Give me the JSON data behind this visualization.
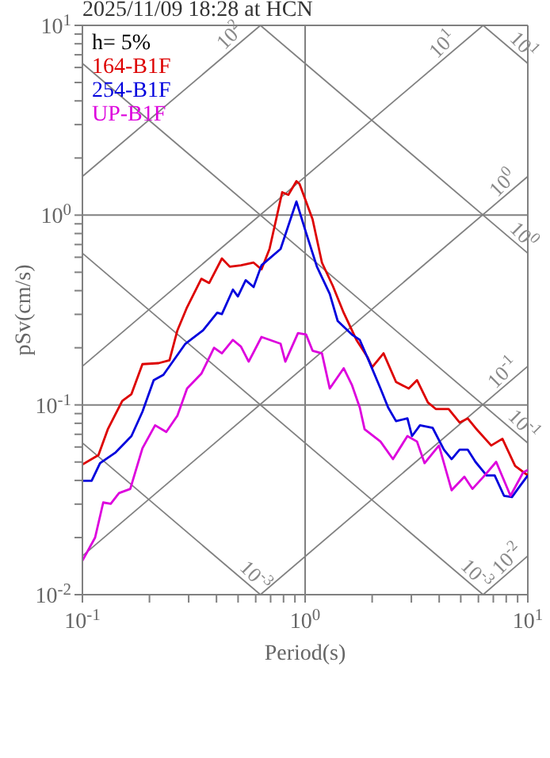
{
  "chart_data": {
    "type": "line",
    "title": "2025/11/09 18:28 at HCN",
    "xlabel": "Period(s)",
    "ylabel": "pSv(cm/s)",
    "legend_title": "h= 5%",
    "legend": "top left",
    "log": "xy",
    "grid": true,
    "xlim": [
      0.1,
      10
    ],
    "ylim": [
      0.01,
      10
    ],
    "xticks": [
      {
        "value": 0.1,
        "label": "10$^{-1}$"
      },
      {
        "value": 0.2,
        "label": null
      },
      {
        "value": 0.3,
        "label": null
      },
      {
        "value": 0.4,
        "label": null
      },
      {
        "value": 0.5,
        "label": null
      },
      {
        "value": 0.6,
        "label": null
      },
      {
        "value": 0.7,
        "label": null
      },
      {
        "value": 0.8,
        "label": null
      },
      {
        "value": 0.9,
        "label": null
      },
      {
        "value": 1,
        "label": "10$^{0}$"
      },
      {
        "value": 2,
        "label": null
      },
      {
        "value": 3,
        "label": null
      },
      {
        "value": 4,
        "label": null
      },
      {
        "value": 5,
        "label": null
      },
      {
        "value": 6,
        "label": null
      },
      {
        "value": 7,
        "label": null
      },
      {
        "value": 8,
        "label": null
      },
      {
        "value": 9,
        "label": null
      },
      {
        "value": 10,
        "label": "10$^{1}$"
      }
    ],
    "yticks": [
      {
        "value": 0.01,
        "label": "10$^{-2}$"
      },
      {
        "value": 0.02,
        "label": null
      },
      {
        "value": 0.03,
        "label": null
      },
      {
        "value": 0.04,
        "label": null
      },
      {
        "value": 0.05,
        "label": null
      },
      {
        "value": 0.06,
        "label": null
      },
      {
        "value": 0.07,
        "label": null
      },
      {
        "value": 0.08,
        "label": null
      },
      {
        "value": 0.09,
        "label": null
      },
      {
        "value": 0.1,
        "label": "10$^{-1}$"
      },
      {
        "value": 0.2,
        "label": null
      },
      {
        "value": 0.3,
        "label": null
      },
      {
        "value": 0.4,
        "label": null
      },
      {
        "value": 0.5,
        "label": null
      },
      {
        "value": 0.6,
        "label": null
      },
      {
        "value": 0.7,
        "label": null
      },
      {
        "value": 0.8,
        "label": null
      },
      {
        "value": 0.9,
        "label": null
      },
      {
        "value": 1,
        "label": "10$^{0}$"
      },
      {
        "value": 2,
        "label": null
      },
      {
        "value": 3,
        "label": null
      },
      {
        "value": 4,
        "label": null
      },
      {
        "value": 5,
        "label": null
      },
      {
        "value": 6,
        "label": null
      },
      {
        "value": 7,
        "label": null
      },
      {
        "value": 8,
        "label": null
      },
      {
        "value": 9,
        "label": null
      },
      {
        "value": 10,
        "label": "10$^{1}$"
      }
    ],
    "series": [
      {
        "type": "line",
        "color": "#808080",
        "x": [
          0.1,
          0.63
        ],
        "values": [
          1.6,
          10
        ]
      },
      {
        "type": "line",
        "color": "#808080",
        "x": [
          0.1,
          6.3
        ],
        "values": [
          0.16,
          10
        ]
      },
      {
        "type": "line",
        "color": "#808080",
        "x": [
          0.1,
          10
        ],
        "values": [
          0.016,
          1.6
        ]
      },
      {
        "type": "line",
        "color": "#808080",
        "x": [
          0.63,
          10
        ],
        "values": [
          0.01,
          0.16
        ]
      },
      {
        "type": "line",
        "color": "#808080",
        "x": [
          6.3,
          10
        ],
        "values": [
          0.01,
          0.016
        ]
      },
      {
        "type": "line",
        "color": "#808080",
        "x": [
          6.3,
          10
        ],
        "values": [
          10,
          6.3
        ]
      },
      {
        "type": "line",
        "color": "#808080",
        "x": [
          0.63,
          10
        ],
        "values": [
          10,
          0.63
        ]
      },
      {
        "type": "line",
        "color": "#808080",
        "x": [
          0.1,
          10
        ],
        "values": [
          6.3,
          0.063
        ]
      },
      {
        "type": "line",
        "color": "#808080",
        "x": [
          0.1,
          6.3
        ],
        "values": [
          0.63,
          0.01
        ]
      },
      {
        "type": "line",
        "color": "#808080",
        "x": [
          0.1,
          0.63
        ],
        "values": [
          0.063,
          0.01
        ]
      },
      {
        "name": "164-B1F",
        "color": "#dd0000",
        "x": [
          0.1,
          0.118,
          0.13,
          0.151,
          0.166,
          0.186,
          0.22,
          0.246,
          0.267,
          0.295,
          0.342,
          0.371,
          0.423,
          0.459,
          0.515,
          0.587,
          0.637,
          0.692,
          0.789,
          0.841,
          0.914,
          0.944,
          1.08,
          1.19,
          1.33,
          1.49,
          1.7,
          1.91,
          2.0,
          2.25,
          2.56,
          2.92,
          3.18,
          3.56,
          3.86,
          4.41,
          4.94,
          5.37,
          5.82,
          6.85,
          7.69,
          8.77,
          10
        ],
        "values": [
          0.0485,
          0.0544,
          0.0744,
          0.105,
          0.114,
          0.164,
          0.166,
          0.172,
          0.247,
          0.327,
          0.462,
          0.439,
          0.591,
          0.535,
          0.544,
          0.562,
          0.518,
          0.663,
          1.32,
          1.28,
          1.51,
          1.46,
          0.952,
          0.562,
          0.425,
          0.306,
          0.22,
          0.178,
          0.158,
          0.187,
          0.132,
          0.122,
          0.135,
          0.103,
          0.0952,
          0.0952,
          0.0807,
          0.0849,
          0.0756,
          0.0611,
          0.0663,
          0.0477,
          0.0425
        ]
      },
      {
        "name": "254-B1F",
        "color": "#0000dd",
        "x": [
          0.1,
          0.11,
          0.12,
          0.141,
          0.166,
          0.186,
          0.209,
          0.231,
          0.29,
          0.348,
          0.403,
          0.423,
          0.474,
          0.499,
          0.541,
          0.587,
          0.637,
          0.776,
          0.914,
          1.01,
          1.13,
          1.29,
          1.4,
          1.62,
          1.76,
          1.94,
          2.18,
          2.36,
          2.56,
          2.88,
          3.02,
          3.28,
          3.74,
          4.2,
          4.55,
          4.94,
          5.37,
          5.82,
          6.53,
          7.1,
          7.82,
          8.49,
          9.21,
          10
        ],
        "values": [
          0.0398,
          0.0398,
          0.0493,
          0.0562,
          0.0685,
          0.0921,
          0.135,
          0.144,
          0.21,
          0.247,
          0.306,
          0.301,
          0.405,
          0.373,
          0.454,
          0.418,
          0.544,
          0.663,
          1.18,
          0.807,
          0.535,
          0.385,
          0.277,
          0.235,
          0.22,
          0.169,
          0.122,
          0.0968,
          0.0821,
          0.0849,
          0.0685,
          0.0781,
          0.0756,
          0.0581,
          0.0518,
          0.0581,
          0.0581,
          0.0501,
          0.0425,
          0.0425,
          0.0332,
          0.0327,
          0.0373,
          0.0425
        ]
      },
      {
        "name": "UP-B1F",
        "color": "#dd00dd",
        "x": [
          0.1,
          0.114,
          0.124,
          0.134,
          0.146,
          0.164,
          0.186,
          0.212,
          0.238,
          0.267,
          0.295,
          0.342,
          0.39,
          0.423,
          0.474,
          0.515,
          0.558,
          0.637,
          0.776,
          0.815,
          0.929,
          1.01,
          1.08,
          1.19,
          1.29,
          1.49,
          1.62,
          1.76,
          1.85,
          2.18,
          2.48,
          2.88,
          3.18,
          3.44,
          3.99,
          4.55,
          5.19,
          5.64,
          6.32,
          7.21,
          8.36,
          9.52,
          10
        ],
        "values": [
          0.0151,
          0.02,
          0.0306,
          0.0301,
          0.0343,
          0.0361,
          0.0591,
          0.0781,
          0.072,
          0.0877,
          0.122,
          0.146,
          0.2,
          0.187,
          0.22,
          0.203,
          0.169,
          0.228,
          0.21,
          0.169,
          0.239,
          0.235,
          0.193,
          0.187,
          0.122,
          0.156,
          0.128,
          0.0968,
          0.0744,
          0.0641,
          0.0518,
          0.0685,
          0.0641,
          0.0493,
          0.0611,
          0.0355,
          0.0418,
          0.0361,
          0.0418,
          0.0501,
          0.0332,
          0.044,
          0.0454
        ]
      }
    ],
    "annotations": [
      {
        "text": "10$^{2}$",
        "x": 0.5,
        "y": 8
      },
      {
        "text": "10$^{1}$",
        "x": 4.5,
        "y": 7.2
      },
      {
        "text": "10$^{0}$",
        "x": 8.4,
        "y": 1.34
      },
      {
        "text": "10$^{-1}$",
        "x": 8.4,
        "y": 0.134
      },
      {
        "text": "10$^{-2}$",
        "x": 8.8,
        "y": 0.014
      },
      {
        "text": "10$^{1}$",
        "x": 8.8,
        "y": 7.14
      },
      {
        "text": "10$^{0}$",
        "x": 8.8,
        "y": 0.71
      },
      {
        "text": "10$^{-1}$",
        "x": 8.8,
        "y": 0.0714
      },
      {
        "text": "10$^{-3}$",
        "x": 0.55,
        "y": 0.0114
      },
      {
        "text": "10$^{-3}$",
        "x": 5.4,
        "y": 0.0116
      }
    ]
  }
}
